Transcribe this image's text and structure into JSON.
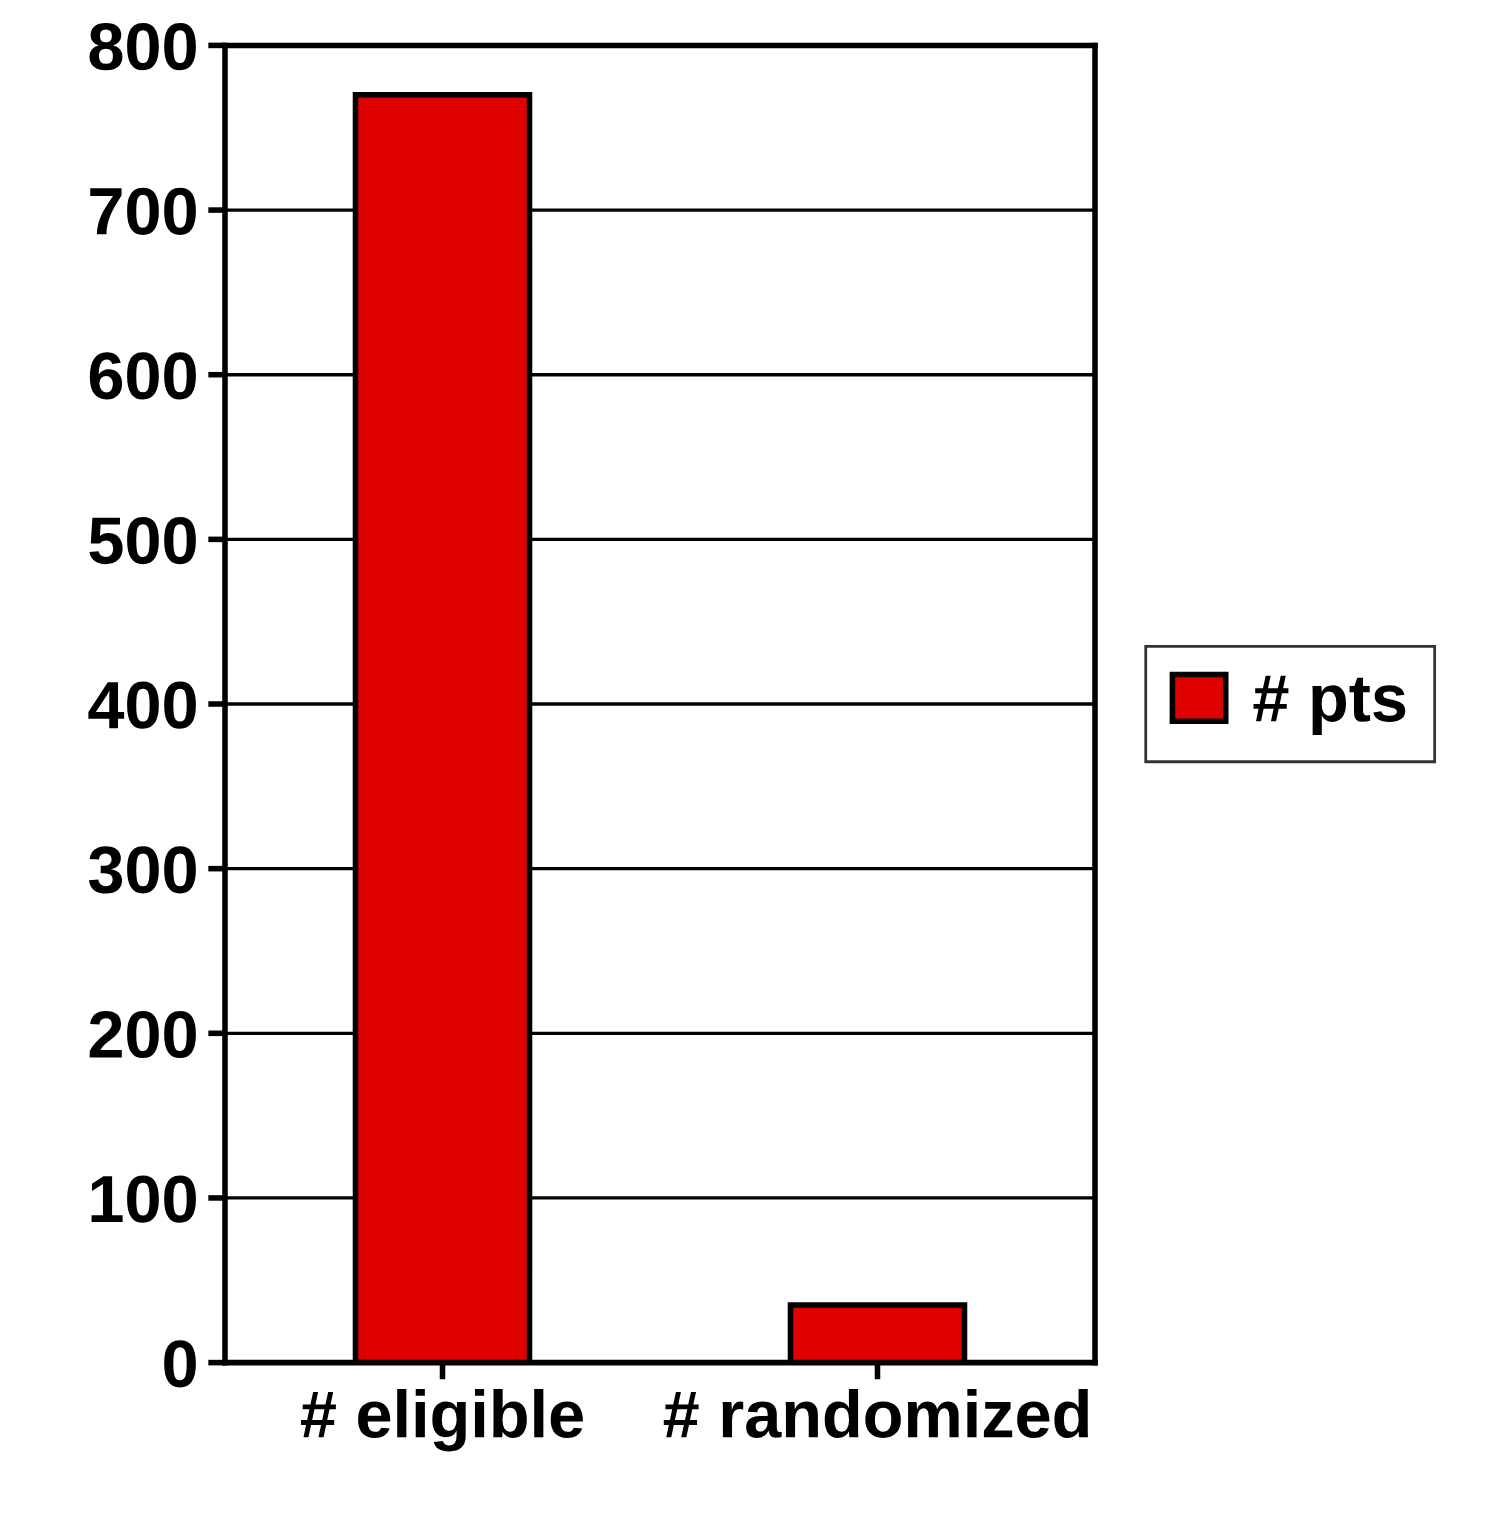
{
  "chart_data": {
    "type": "bar",
    "categories": [
      "# eligible",
      "# randomized"
    ],
    "series": [
      {
        "name": "# pts",
        "color": "#e00000",
        "values": [
          770,
          35
        ]
      }
    ],
    "ylim": [
      0,
      800
    ],
    "yticks": [
      0,
      100,
      200,
      300,
      400,
      500,
      600,
      700,
      800
    ],
    "grid": "y",
    "legend": "right"
  }
}
